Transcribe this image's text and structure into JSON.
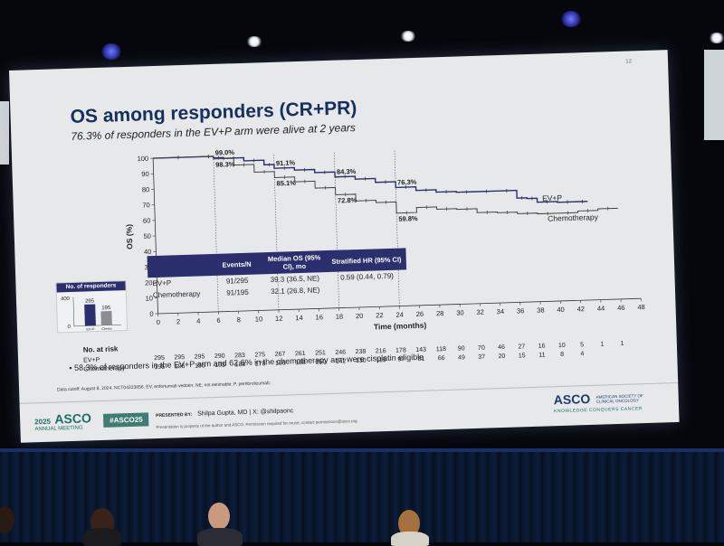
{
  "slide": {
    "number": "12",
    "title": "OS among responders (CR+PR)",
    "subtitle": "76.3% of responders in the EV+P arm were alive at 2 years",
    "footnote": "58.3% of responders in the EV+P arm and 62.6% in the chemotherapy arm were cisplatin eligible",
    "data_cutoff": "Data cutoff: August 8, 2024. NCT04223856. EV, enfortumab vedotin; NE, not estimable; P, pembrolizumab."
  },
  "hr_table": {
    "headers": [
      "",
      "Events/N",
      "Median OS (95% CI), mo",
      "Stratified HR (95% CI)"
    ],
    "rows": [
      {
        "arm": "EV+P",
        "events": "91/295",
        "median": "39.3 (36.5, NE)",
        "hr": "0.59 (0.44, 0.79)"
      },
      {
        "arm": "Chemotherapy",
        "events": "91/195",
        "median": "32.1 (26.8, NE)",
        "hr": ""
      }
    ]
  },
  "responders": {
    "title": "No. of responders",
    "axis_max": "400",
    "axis_min": "0",
    "bars": [
      {
        "label": "EV+P",
        "value": 295,
        "value_label": "295",
        "color": "#2b2f6e"
      },
      {
        "label": "Chemo",
        "value": 195,
        "value_label": "195",
        "color": "#8a8d92"
      }
    ]
  },
  "at_risk": {
    "title": "No. at risk",
    "rows": [
      {
        "label": "EV+P",
        "values": [
          "295",
          "295",
          "295",
          "290",
          "283",
          "275",
          "267",
          "261",
          "251",
          "246",
          "238",
          "216",
          "178",
          "143",
          "118",
          "90",
          "70",
          "46",
          "27",
          "16",
          "10",
          "5",
          "1",
          "1"
        ]
      },
      {
        "label": "Chemotherapy",
        "values": [
          "195",
          "195",
          "195",
          "193",
          "188",
          "178",
          "166",
          "158",
          "150",
          "142",
          "130",
          "115",
          "97",
          "81",
          "66",
          "49",
          "37",
          "20",
          "15",
          "11",
          "8",
          "4",
          "",
          ""
        ]
      }
    ]
  },
  "footer": {
    "year": "2025",
    "org": "ASCO",
    "meeting": "ANNUAL MEETING",
    "hashtag": "#ASCO25",
    "presented_by_label": "PRESENTED BY:",
    "presenter": "Shilpa Gupta, MD | X: @shilpaonc",
    "property_note": "Presentation is property of the author and ASCO. Permission required for reuse; contact permissions@asco.org",
    "right_logo": "ASCO",
    "right_society": "AMERICAN SOCIETY OF CLINICAL ONCOLOGY",
    "tagline": "KNOWLEDGE CONQUERS CANCER"
  },
  "chart_data": {
    "type": "line",
    "xlabel": "Time (months)",
    "ylabel": "OS (%)",
    "xlim": [
      0,
      48
    ],
    "ylim": [
      0,
      100
    ],
    "xticks": [
      "0",
      "2",
      "4",
      "6",
      "8",
      "10",
      "12",
      "14",
      "16",
      "18",
      "20",
      "22",
      "24",
      "26",
      "28",
      "30",
      "32",
      "34",
      "36",
      "38",
      "40",
      "42",
      "44",
      "46",
      "48"
    ],
    "yticks": [
      "0",
      "10",
      "20",
      "30",
      "40",
      "50",
      "60",
      "70",
      "80",
      "90",
      "100"
    ],
    "series": [
      {
        "name": "EV+P",
        "color": "#2b2f6e",
        "x": [
          0,
          5,
          6,
          7,
          9,
          11,
          12,
          14,
          16,
          18,
          20,
          22,
          24,
          26,
          28,
          30,
          32,
          34,
          36,
          37,
          38,
          40,
          42,
          43
        ],
        "y": [
          100,
          100,
          99.0,
          98.5,
          96.5,
          93.5,
          91.1,
          89.5,
          87.5,
          84.3,
          82.5,
          80.0,
          76.3,
          74.0,
          72.5,
          72.0,
          72.0,
          72.0,
          67.0,
          66.5,
          64.0,
          63.5,
          63.5,
          63.5
        ]
      },
      {
        "name": "Chemotherapy",
        "color": "#444444",
        "x": [
          0,
          5,
          6,
          8,
          10,
          12,
          14,
          16,
          18,
          20,
          22,
          24,
          26,
          28,
          30,
          32,
          34,
          36,
          38,
          40,
          42,
          44,
          46
        ],
        "y": [
          100,
          100,
          98.3,
          94.0,
          89.0,
          85.1,
          82.0,
          77.5,
          72.8,
          68.5,
          67.0,
          59.8,
          63.0,
          61.5,
          61.0,
          58.5,
          58.0,
          57.0,
          56.5,
          56.5,
          57.5,
          58.5,
          58.5
        ]
      }
    ],
    "annotations": [
      {
        "text": "99.0%",
        "x": 6,
        "y": 99.0
      },
      {
        "text": "98.3%",
        "x": 6,
        "y": 98.3
      },
      {
        "text": "91.1%",
        "x": 12,
        "y": 91.1
      },
      {
        "text": "85.1%",
        "x": 12,
        "y": 85.1
      },
      {
        "text": "84.3%",
        "x": 18,
        "y": 84.3
      },
      {
        "text": "72.8%",
        "x": 18,
        "y": 72.8
      },
      {
        "text": "76.3%",
        "x": 24,
        "y": 76.3
      },
      {
        "text": "59.8%",
        "x": 24,
        "y": 59.8
      }
    ],
    "reference_x": [
      6,
      12,
      18,
      24
    ],
    "legend": "inline"
  }
}
